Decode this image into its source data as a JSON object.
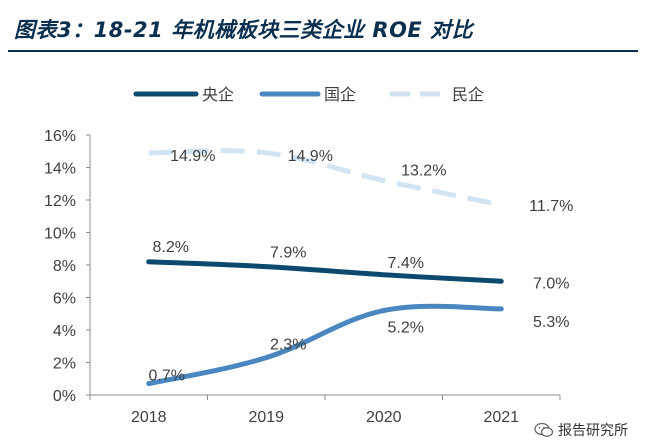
{
  "header": {
    "title": "图表3：18-21 年机械板块三类企业 ROE 对比"
  },
  "watermark": {
    "text": "报告研究所",
    "icon": "wechat-icon"
  },
  "chart_data": {
    "type": "line",
    "categories": [
      "2018",
      "2019",
      "2020",
      "2021"
    ],
    "series": [
      {
        "name": "央企",
        "values": [
          8.2,
          7.9,
          7.4,
          7.0
        ],
        "labels": [
          "8.2%",
          "7.9%",
          "7.4%",
          "7.0%"
        ],
        "color": "#0b4a6e",
        "style": "solid"
      },
      {
        "name": "国企",
        "values": [
          0.7,
          2.3,
          5.2,
          5.3
        ],
        "labels": [
          "0.7%",
          "2.3%",
          "5.2%",
          "5.3%"
        ],
        "color": "#4a86c0",
        "style": "solid"
      },
      {
        "name": "民企",
        "values": [
          14.9,
          14.9,
          13.2,
          11.7
        ],
        "labels": [
          "14.9%",
          "14.9%",
          "13.2%",
          "11.7%"
        ],
        "color": "#d2e3f1",
        "style": "dashed"
      }
    ],
    "y_ticks": [
      "0%",
      "2%",
      "4%",
      "6%",
      "8%",
      "10%",
      "12%",
      "14%",
      "16%"
    ],
    "ylim": [
      0,
      16
    ],
    "legend_position": "top",
    "grid": false
  }
}
